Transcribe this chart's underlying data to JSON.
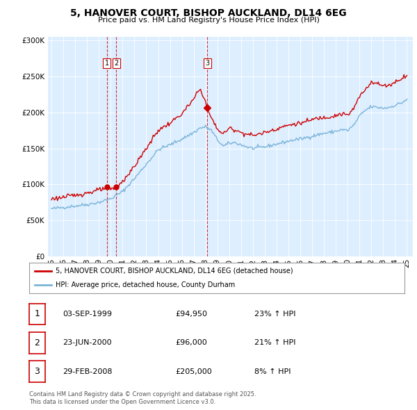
{
  "title": "5, HANOVER COURT, BISHOP AUCKLAND, DL14 6EG",
  "subtitle": "Price paid vs. HM Land Registry's House Price Index (HPI)",
  "legend_line1": "5, HANOVER COURT, BISHOP AUCKLAND, DL14 6EG (detached house)",
  "legend_line2": "HPI: Average price, detached house, County Durham",
  "footer1": "Contains HM Land Registry data © Crown copyright and database right 2025.",
  "footer2": "This data is licensed under the Open Government Licence v3.0.",
  "transactions": [
    {
      "num": 1,
      "date": "03-SEP-1999",
      "price": 94950,
      "hpi_pct": "23% ↑ HPI",
      "x": 1999.67
    },
    {
      "num": 2,
      "date": "23-JUN-2000",
      "price": 96000,
      "hpi_pct": "21% ↑ HPI",
      "x": 2000.47
    },
    {
      "num": 3,
      "date": "29-FEB-2008",
      "price": 205000,
      "hpi_pct": "8% ↑ HPI",
      "x": 2008.16
    }
  ],
  "hpi_color": "#7ab4d8",
  "price_color": "#cc0000",
  "dashed_color": "#cc0000",
  "chart_bg": "#ddeeff",
  "ylim": [
    0,
    305000
  ],
  "yticks": [
    0,
    50000,
    100000,
    150000,
    200000,
    250000,
    300000
  ],
  "xlim_start": 1994.7,
  "xlim_end": 2025.5,
  "hpi_anchors_x": [
    1995.0,
    1996.0,
    1997.0,
    1998.0,
    1999.0,
    2000.0,
    2001.0,
    2002.0,
    2003.0,
    2004.0,
    2005.0,
    2006.0,
    2007.0,
    2007.5,
    2008.0,
    2008.5,
    2009.0,
    2009.5,
    2010.0,
    2010.5,
    2011.0,
    2011.5,
    2012.0,
    2012.5,
    2013.0,
    2013.5,
    2014.0,
    2014.5,
    2015.0,
    2015.5,
    2016.0,
    2016.5,
    2017.0,
    2017.5,
    2018.0,
    2018.5,
    2019.0,
    2019.5,
    2020.0,
    2020.5,
    2021.0,
    2021.5,
    2022.0,
    2022.5,
    2023.0,
    2023.5,
    2024.0,
    2024.5,
    2025.0
  ],
  "hpi_anchors_y": [
    66000,
    68000,
    70000,
    72000,
    75000,
    80000,
    90000,
    108000,
    128000,
    148000,
    155000,
    163000,
    172000,
    178000,
    180000,
    175000,
    162000,
    153000,
    157000,
    158000,
    155000,
    152000,
    150000,
    151000,
    152000,
    154000,
    156000,
    158000,
    160000,
    162000,
    163000,
    165000,
    167000,
    169000,
    171000,
    172000,
    174000,
    176000,
    175000,
    182000,
    195000,
    203000,
    208000,
    207000,
    206000,
    207000,
    210000,
    213000,
    218000
  ],
  "prop_anchors_x": [
    1995.0,
    1996.0,
    1997.0,
    1998.0,
    1999.0,
    1999.67,
    2000.0,
    2000.47,
    2001.0,
    2002.0,
    2003.0,
    2004.0,
    2005.0,
    2006.0,
    2007.0,
    2007.3,
    2007.6,
    2008.0,
    2008.16,
    2008.5,
    2009.0,
    2009.5,
    2010.0,
    2010.5,
    2011.0,
    2011.5,
    2012.0,
    2012.5,
    2013.0,
    2013.5,
    2014.0,
    2014.5,
    2015.0,
    2015.5,
    2016.0,
    2016.5,
    2017.0,
    2017.5,
    2018.0,
    2018.5,
    2019.0,
    2019.5,
    2020.0,
    2020.5,
    2021.0,
    2021.5,
    2022.0,
    2022.5,
    2023.0,
    2023.5,
    2024.0,
    2024.5,
    2025.0
  ],
  "prop_anchors_y": [
    80000,
    82000,
    85000,
    88000,
    92000,
    94950,
    93500,
    96000,
    104000,
    125000,
    150000,
    175000,
    185000,
    198000,
    218000,
    228000,
    232000,
    215000,
    205000,
    192000,
    177000,
    170000,
    178000,
    176000,
    172000,
    170000,
    168000,
    170000,
    172000,
    175000,
    177000,
    180000,
    182000,
    184000,
    185000,
    187000,
    190000,
    192000,
    193000,
    194000,
    196000,
    198000,
    196000,
    205000,
    222000,
    232000,
    243000,
    240000,
    237000,
    238000,
    242000,
    247000,
    252000
  ],
  "noise_seed_hpi": 42,
  "noise_seed_prop": 123,
  "noise_hpi": 1200,
  "noise_prop": 1500
}
